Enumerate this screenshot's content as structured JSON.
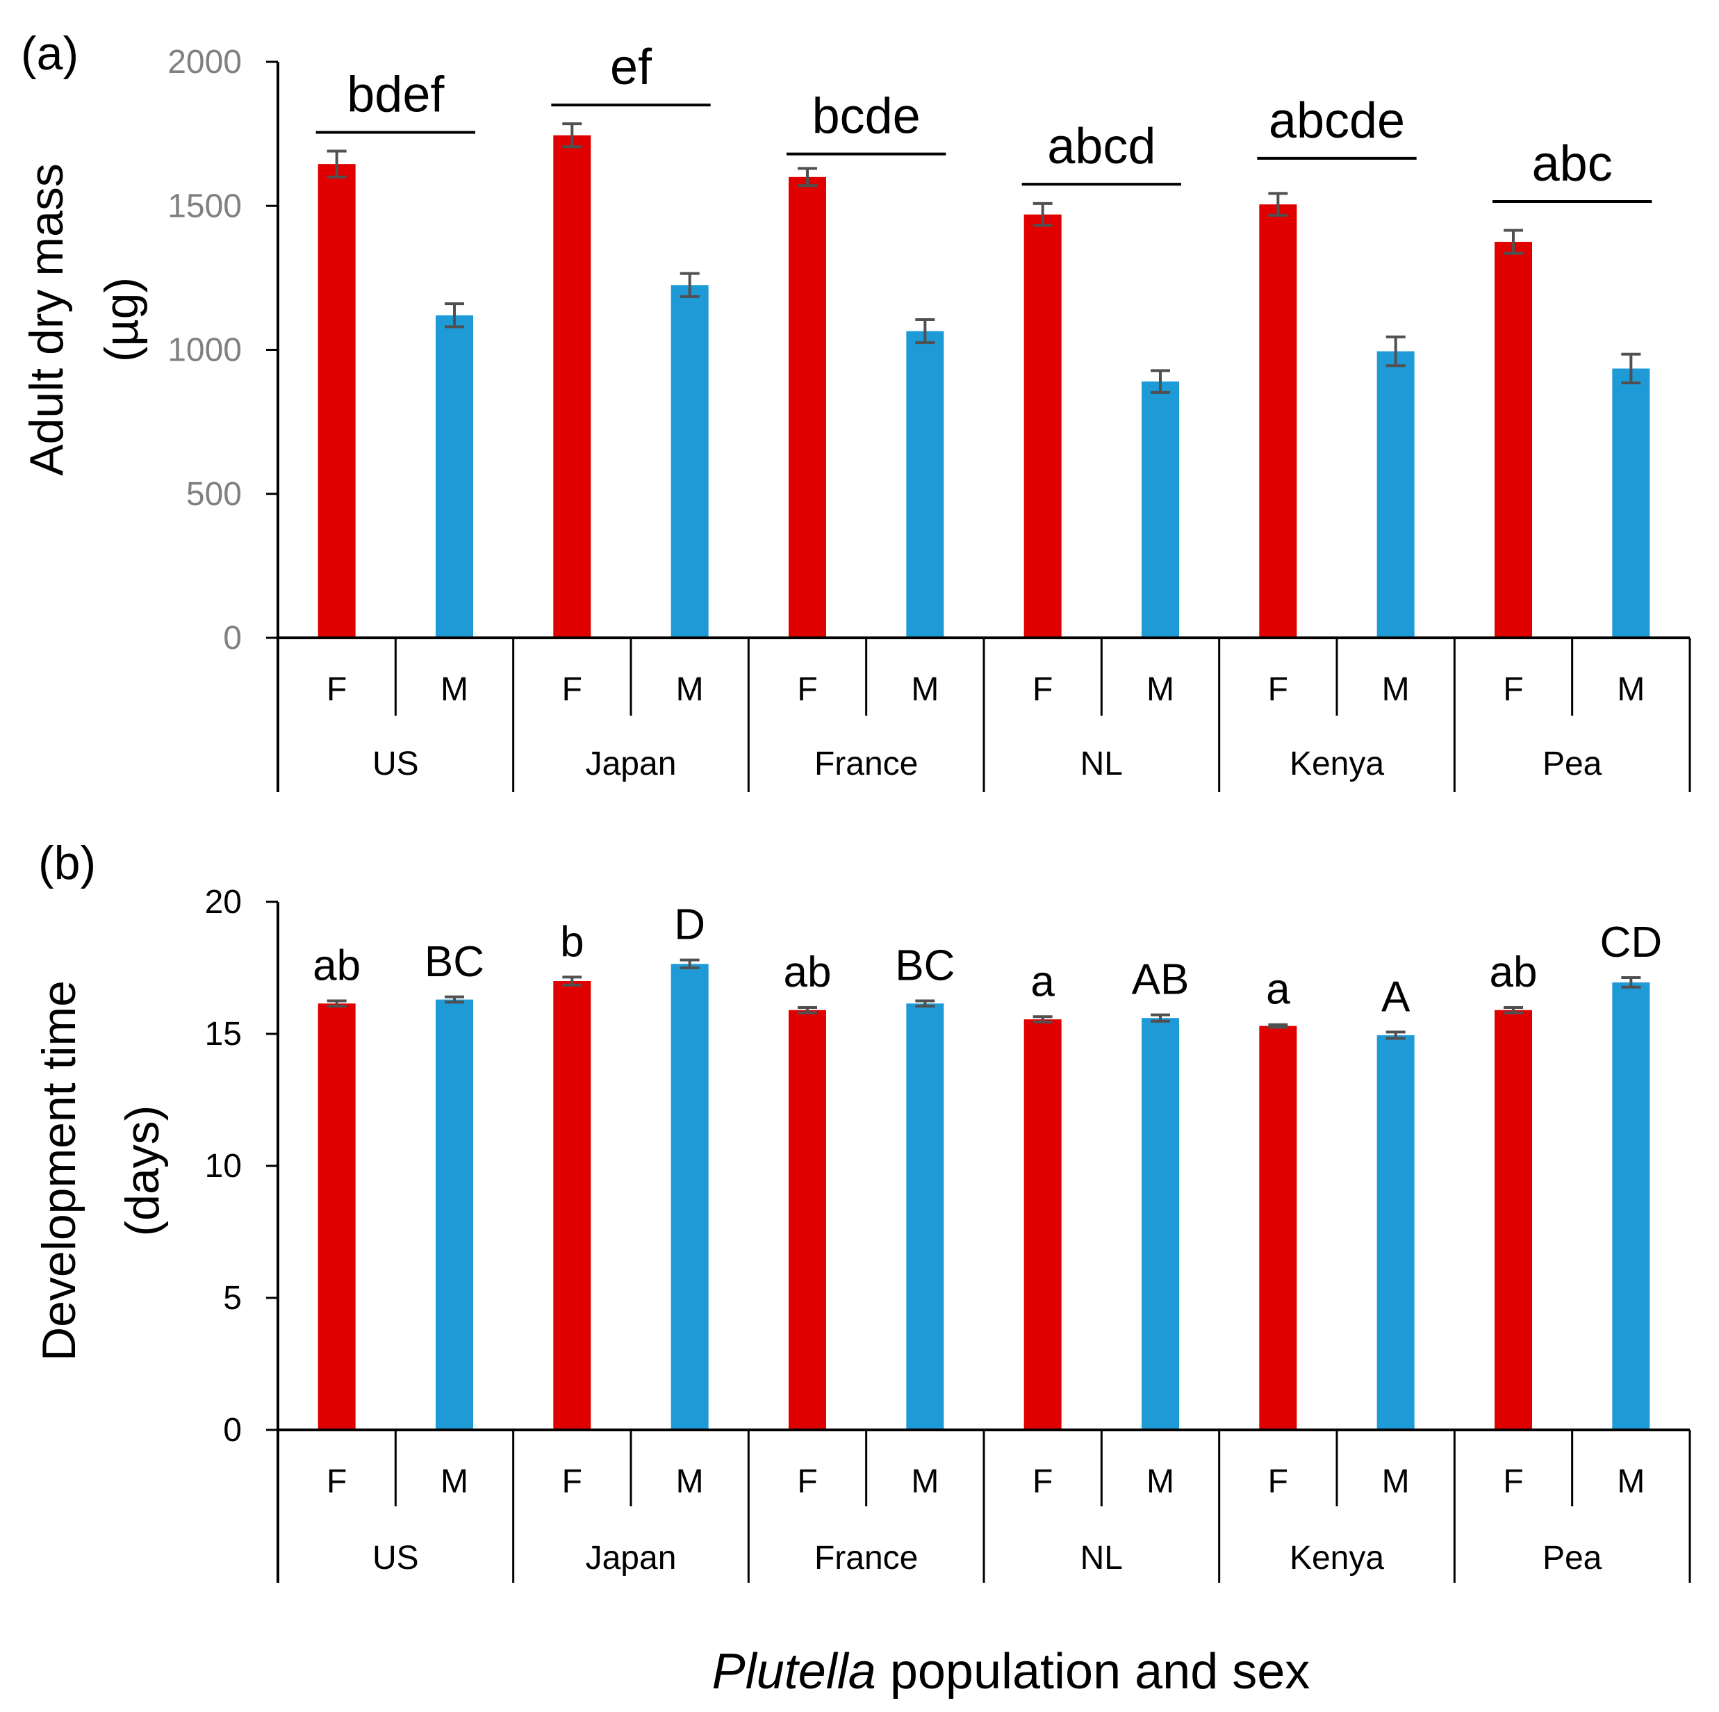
{
  "chart_data": [
    {
      "type": "bar",
      "panel_label": "(a)",
      "ylabel_lines": [
        "Adult dry mass",
        "(µg)"
      ],
      "ylim": [
        0,
        2000
      ],
      "yticks": [
        0,
        500,
        1000,
        1500,
        2000
      ],
      "populations": [
        "US",
        "Japan",
        "France",
        "NL",
        "Kenya",
        "Pea"
      ],
      "sexes": [
        "F",
        "M"
      ],
      "colors": {
        "F": "#e00000",
        "M": "#1e9bd7",
        "error": "#505050"
      },
      "series": [
        {
          "name": "F",
          "values": [
            1645,
            1745,
            1600,
            1470,
            1505,
            1375
          ],
          "errors": [
            45,
            40,
            30,
            38,
            38,
            40
          ]
        },
        {
          "name": "M",
          "values": [
            1120,
            1225,
            1065,
            890,
            995,
            935
          ],
          "errors": [
            40,
            40,
            40,
            38,
            50,
            50
          ]
        }
      ],
      "group_letters": [
        {
          "population": "US",
          "letters": "bdef",
          "bar_level": 1755
        },
        {
          "population": "Japan",
          "letters": "ef",
          "bar_level": 1850
        },
        {
          "population": "France",
          "letters": "bcde",
          "bar_level": 1680
        },
        {
          "population": "NL",
          "letters": "abcd",
          "bar_level": 1575
        },
        {
          "population": "Kenya",
          "letters": "abcde",
          "bar_level": 1665
        },
        {
          "population": "Pea",
          "letters": "abc",
          "bar_level": 1515
        }
      ]
    },
    {
      "type": "bar",
      "panel_label": "(b)",
      "ylabel_lines": [
        "Development time",
        "(days)"
      ],
      "ylim": [
        0,
        20
      ],
      "yticks": [
        0,
        5,
        10,
        15,
        20
      ],
      "populations": [
        "US",
        "Japan",
        "France",
        "NL",
        "Kenya",
        "Pea"
      ],
      "sexes": [
        "F",
        "M"
      ],
      "colors": {
        "F": "#e00000",
        "M": "#1e9bd7",
        "error": "#505050"
      },
      "series": [
        {
          "name": "F",
          "values": [
            16.15,
            17.0,
            15.9,
            15.55,
            15.3,
            15.9
          ],
          "errors": [
            0.1,
            0.15,
            0.1,
            0.1,
            0.05,
            0.1
          ],
          "letters": [
            "ab",
            "b",
            "ab",
            "a",
            "a",
            "ab"
          ]
        },
        {
          "name": "M",
          "values": [
            16.3,
            17.65,
            16.15,
            15.6,
            14.95,
            16.95
          ],
          "errors": [
            0.1,
            0.15,
            0.1,
            0.12,
            0.12,
            0.18
          ],
          "letters": [
            "BC",
            "D",
            "BC",
            "AB",
            "A",
            "CD"
          ]
        }
      ]
    }
  ],
  "xtitle": {
    "italic": "Plutella",
    "rest": " population and sex"
  }
}
